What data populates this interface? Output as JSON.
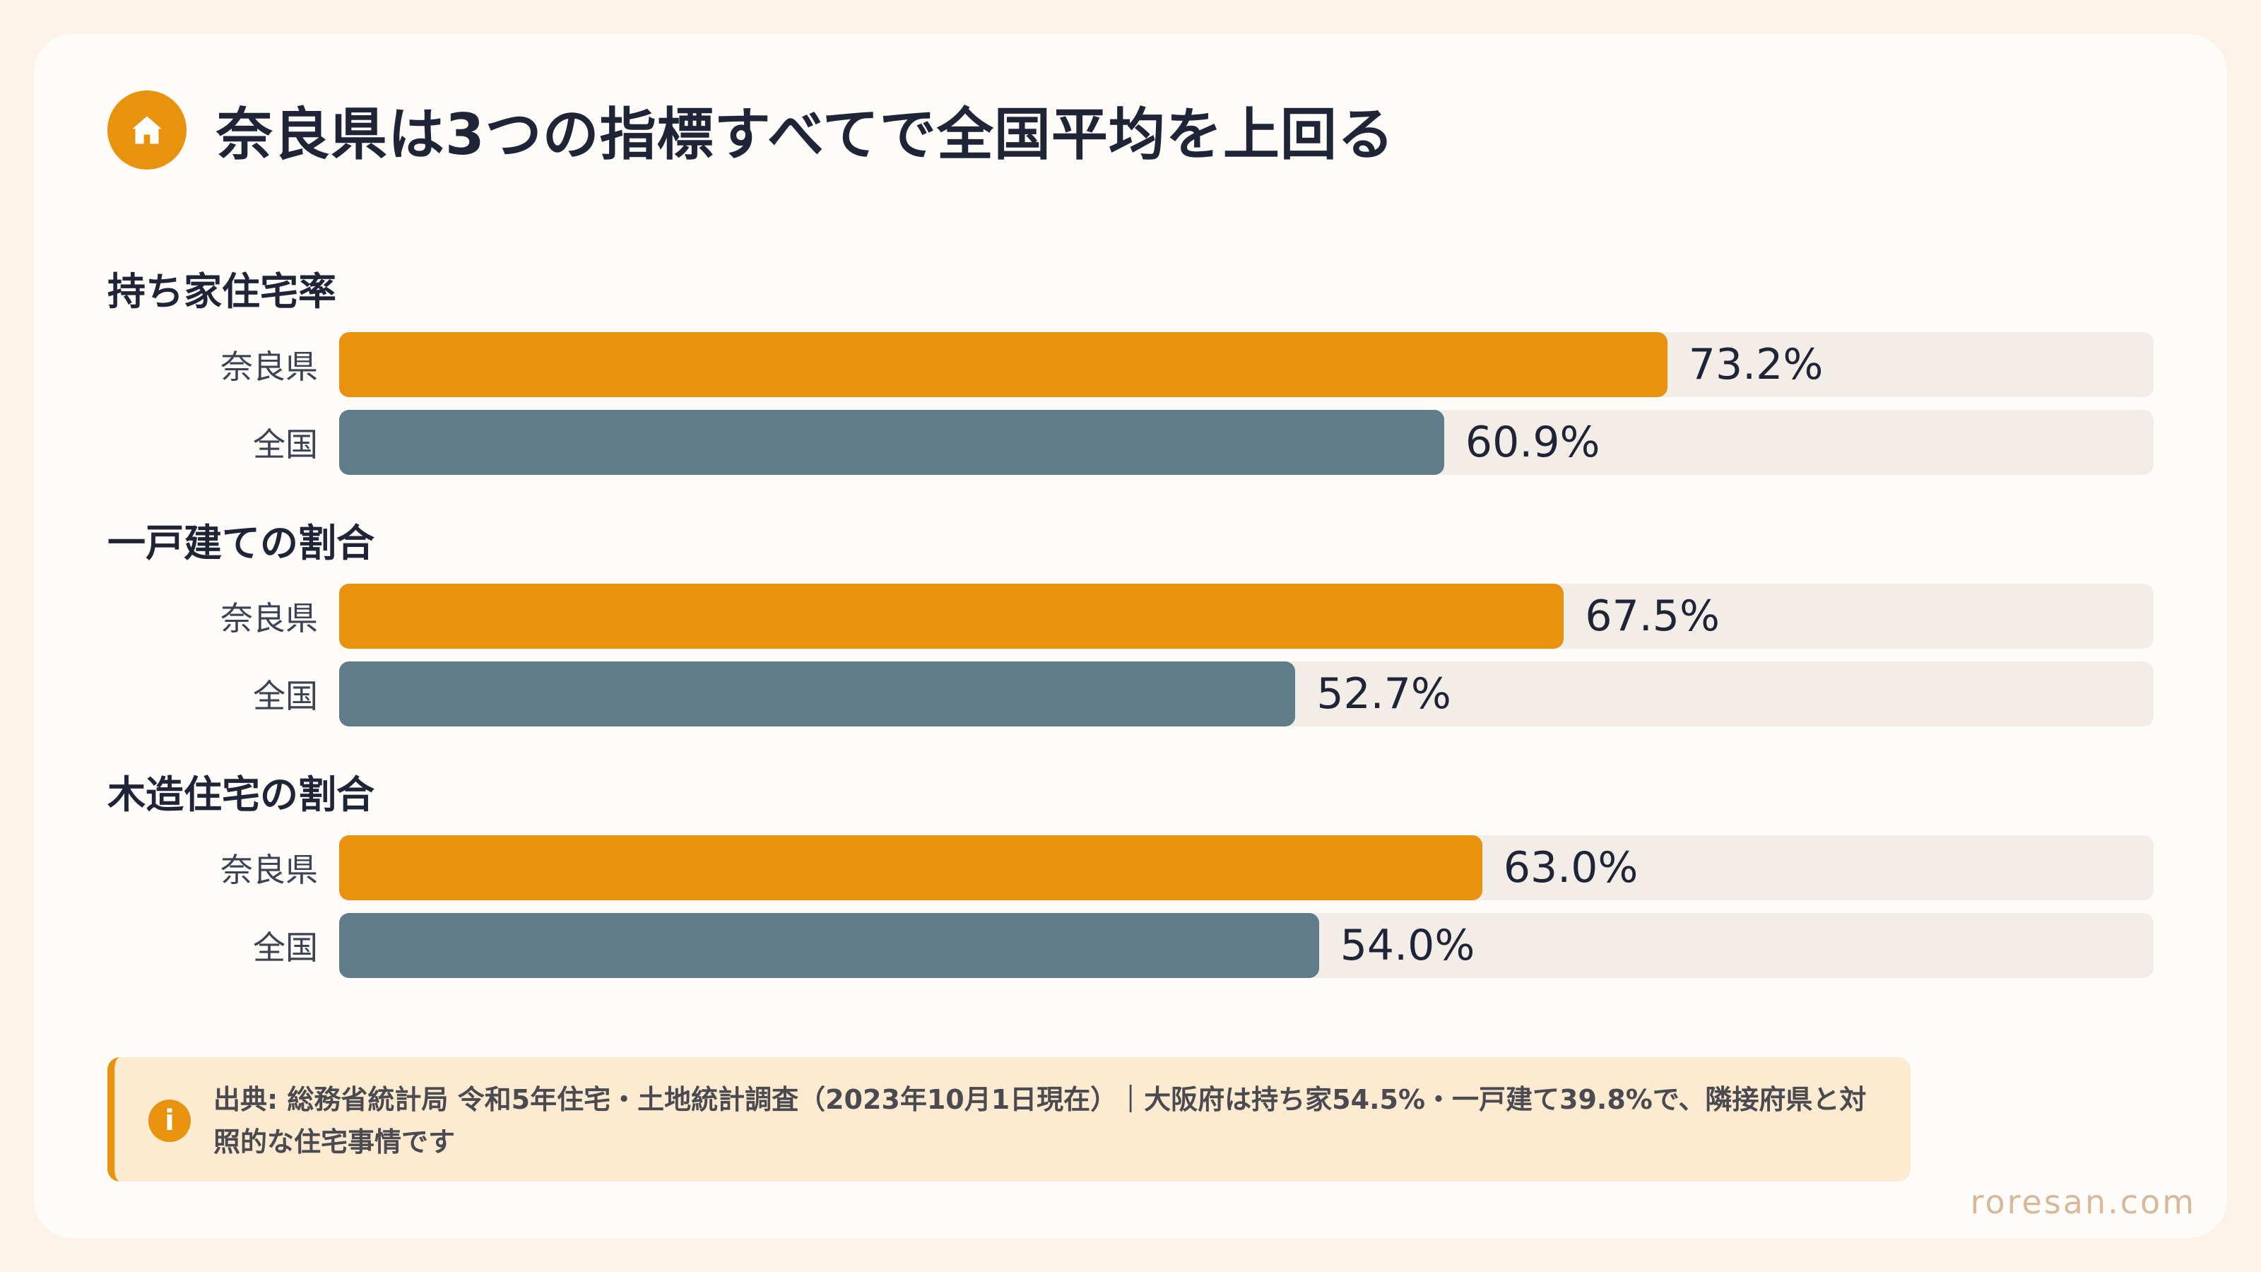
{
  "title": "奈良県は3つの指標すべてで全国平均を上回る",
  "icons": {
    "header": "home-icon",
    "note": "info-icon"
  },
  "colors": {
    "nara": "#e8920e",
    "national": "#607c8a",
    "track": "#f2ede6",
    "note_bg": "#fcebd0",
    "accent": "#e8920e"
  },
  "chart_data": {
    "type": "bar",
    "orientation": "horizontal",
    "xlim": [
      0,
      100
    ],
    "unit": "%",
    "groups": [
      {
        "title": "持ち家住宅率",
        "rows": [
          {
            "label": "奈良県",
            "value": 73.2,
            "display": "73.2%"
          },
          {
            "label": "全国",
            "value": 60.9,
            "display": "60.9%"
          }
        ]
      },
      {
        "title": "一戸建ての割合",
        "rows": [
          {
            "label": "奈良県",
            "value": 67.5,
            "display": "67.5%"
          },
          {
            "label": "全国",
            "value": 52.7,
            "display": "52.7%"
          }
        ]
      },
      {
        "title": "木造住宅の割合",
        "rows": [
          {
            "label": "奈良県",
            "value": 63.0,
            "display": "63.0%"
          },
          {
            "label": "全国",
            "value": 54.0,
            "display": "54.0%"
          }
        ]
      }
    ]
  },
  "note": {
    "text": "出典: 総務省統計局 令和5年住宅・土地統計調査（2023年10月1日現在）｜大阪府は持ち家54.5%・一戸建て39.8%で、隣接府県と対照的な住宅事情です"
  },
  "footer": "roresan.com"
}
